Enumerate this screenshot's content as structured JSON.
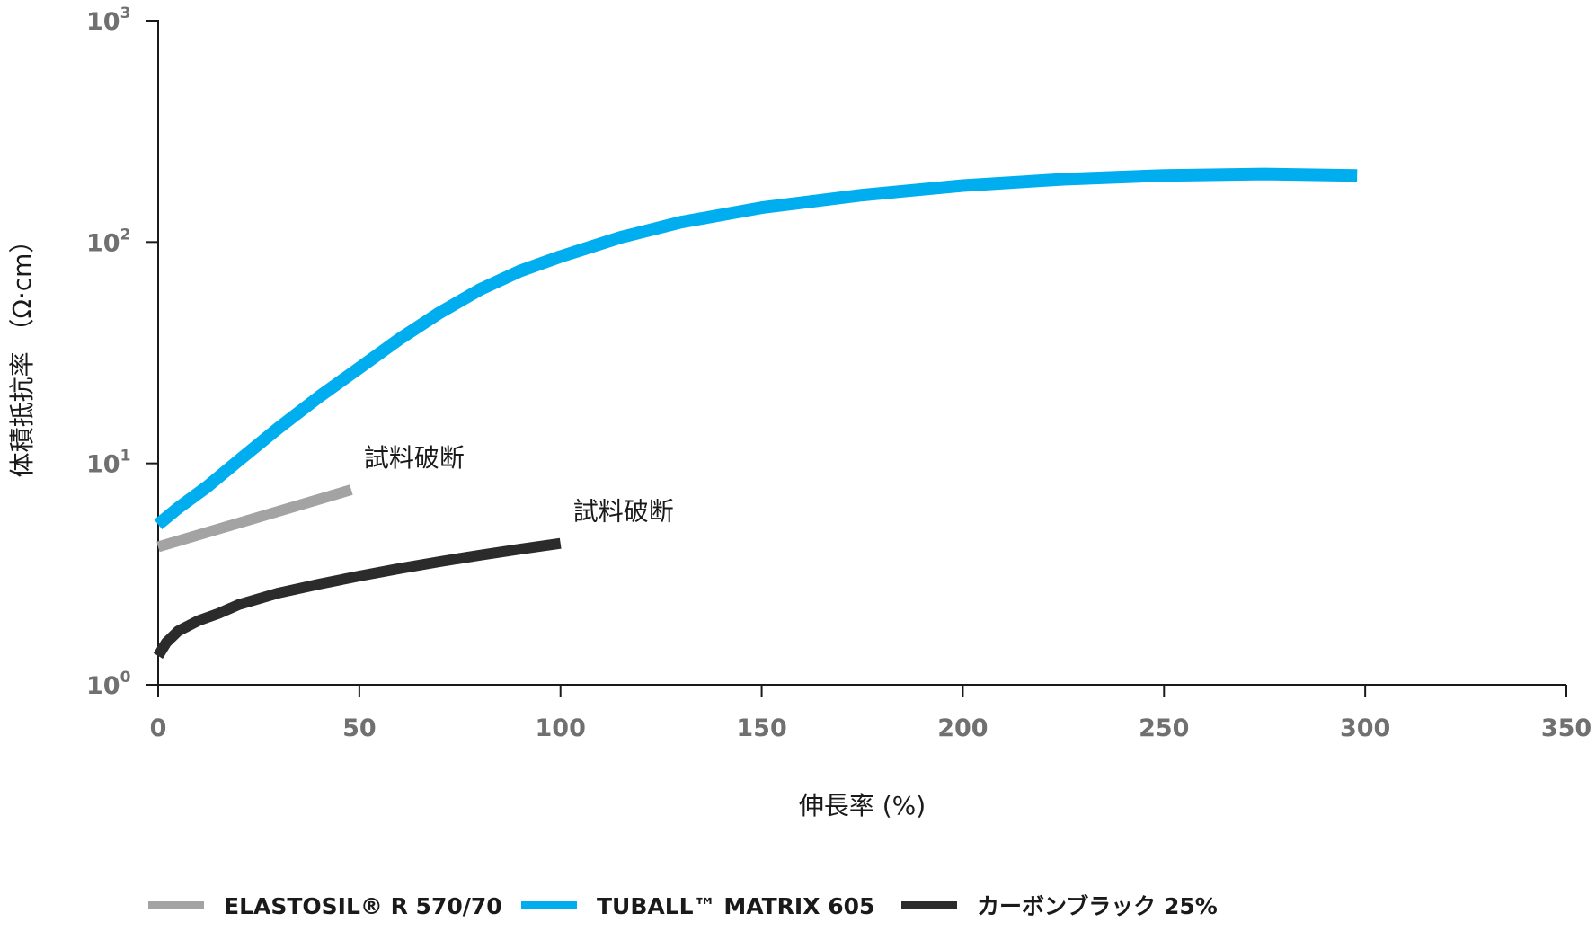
{
  "chart_data": {
    "type": "line",
    "title": "",
    "xlabel": "伸長率 (%)",
    "ylabel": "体積抵抗率 （Ω·cm）",
    "y_scale": "log",
    "xlim": [
      0,
      350
    ],
    "ylim": [
      1,
      1000
    ],
    "x_ticks": [
      0,
      50,
      100,
      150,
      200,
      250,
      300,
      350
    ],
    "x_tick_labels": [
      "0",
      "50",
      "100",
      "150",
      "200",
      "250",
      "300",
      "350"
    ],
    "y_ticks": [
      {
        "value": 1,
        "base": "10",
        "exp": "0"
      },
      {
        "value": 10,
        "base": "10",
        "exp": "1"
      },
      {
        "value": 100,
        "base": "10",
        "exp": "2"
      },
      {
        "value": 1000,
        "base": "10",
        "exp": "3"
      }
    ],
    "grid": false,
    "legend_position": "bottom",
    "series": [
      {
        "name": "ELASTOSIL® R 570/70",
        "color": "#a3a3a3",
        "x": [
          0,
          48
        ],
        "y": [
          4.2,
          7.6
        ]
      },
      {
        "name": "TUBALL™  MATRIX 605",
        "color": "#00aeef",
        "x": [
          0,
          5,
          12,
          20,
          30,
          40,
          50,
          60,
          70,
          80,
          90,
          100,
          115,
          130,
          150,
          175,
          200,
          225,
          250,
          275,
          298
        ],
        "y": [
          5.3,
          6.3,
          7.8,
          10.3,
          14.5,
          20,
          27,
          36.5,
          48,
          61,
          74,
          86,
          105,
          123,
          143,
          163,
          180,
          192,
          200,
          203,
          200
        ]
      },
      {
        "name": "カーボンブラック 25%",
        "color": "#2b2b2b",
        "x": [
          0,
          2,
          5,
          10,
          15,
          20,
          30,
          40,
          50,
          60,
          70,
          80,
          90,
          100
        ],
        "y": [
          1.35,
          1.55,
          1.75,
          1.95,
          2.1,
          2.3,
          2.6,
          2.85,
          3.1,
          3.35,
          3.6,
          3.85,
          4.1,
          4.35
        ]
      }
    ],
    "annotations": [
      {
        "text": "試料破断",
        "series": "ELASTOSIL® R 570/70"
      },
      {
        "text": "試料破断",
        "series": "カーボンブラック 25%"
      }
    ]
  }
}
